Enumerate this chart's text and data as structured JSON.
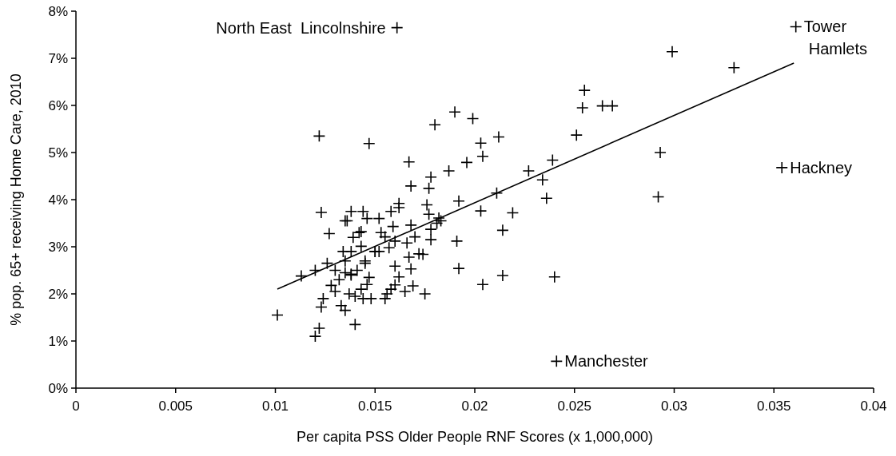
{
  "chart_data": {
    "type": "scatter",
    "xlabel": "Per capita PSS Older People RNF Scores (x 1,000,000)",
    "ylabel": "% pop. 65+ receiving Home Care, 2010",
    "xlim": [
      0,
      0.04
    ],
    "xticks": [
      0,
      0.005,
      0.01,
      0.015,
      0.02,
      0.025,
      0.03,
      0.035,
      0.04
    ],
    "ylim": [
      0,
      8
    ],
    "yticks": [
      {
        "value": 0,
        "label": "0%"
      },
      {
        "value": 1,
        "label": "1%"
      },
      {
        "value": 2,
        "label": "2%"
      },
      {
        "value": 3,
        "label": "3%"
      },
      {
        "value": 4,
        "label": "4%"
      },
      {
        "value": 5,
        "label": "5%"
      },
      {
        "value": 6,
        "label": "6%"
      },
      {
        "value": 7,
        "label": "7%"
      },
      {
        "value": 8,
        "label": "8%"
      }
    ],
    "grid": false,
    "marker": "cross",
    "series": [
      {
        "color": "#000000",
        "x": [
          0.0361,
          0.0299,
          0.033,
          0.0354,
          0.0241,
          0.0161,
          0.0293,
          0.0292,
          0.0255,
          0.0254,
          0.0264,
          0.0269,
          0.0251,
          0.0239,
          0.0227,
          0.0234,
          0.0236,
          0.0211,
          0.0219,
          0.0214,
          0.0203,
          0.024,
          0.0214,
          0.0204,
          0.0192,
          0.0191,
          0.0192,
          0.0212,
          0.0203,
          0.0204,
          0.0199,
          0.019,
          0.018,
          0.0196,
          0.0187,
          0.0178,
          0.0177,
          0.0168,
          0.0167,
          0.0147,
          0.0162,
          0.0162,
          0.0176,
          0.0177,
          0.0182,
          0.0183,
          0.0181,
          0.0168,
          0.0159,
          0.0158,
          0.0152,
          0.0146,
          0.0144,
          0.0138,
          0.0143,
          0.0155,
          0.017,
          0.0178,
          0.0178,
          0.016,
          0.0166,
          0.0157,
          0.015,
          0.0143,
          0.0145,
          0.016,
          0.0168,
          0.0174,
          0.0167,
          0.0162,
          0.0138,
          0.0169,
          0.016,
          0.0101,
          0.0113,
          0.012,
          0.0122,
          0.0123,
          0.012,
          0.0122,
          0.0123,
          0.0126,
          0.0127,
          0.0128,
          0.0124,
          0.013,
          0.013,
          0.0132,
          0.0133,
          0.0134,
          0.0135,
          0.0135,
          0.0135,
          0.0136,
          0.0135,
          0.0137,
          0.0138,
          0.0138,
          0.0139,
          0.014,
          0.014,
          0.0141,
          0.0142,
          0.0143,
          0.0144,
          0.0145,
          0.0146,
          0.0147,
          0.0148,
          0.015,
          0.0152,
          0.0155,
          0.0156,
          0.0158,
          0.0165,
          0.0175,
          0.0172,
          0.0153
        ],
        "values": [
          7.67,
          7.14,
          6.8,
          4.68,
          0.57,
          7.65,
          5.0,
          4.06,
          6.32,
          5.95,
          5.99,
          5.99,
          5.37,
          4.84,
          4.61,
          4.42,
          4.03,
          4.14,
          3.72,
          3.35,
          3.76,
          2.36,
          2.39,
          2.2,
          2.54,
          3.12,
          3.97,
          5.33,
          5.2,
          4.92,
          5.72,
          5.86,
          5.59,
          4.79,
          4.61,
          4.48,
          4.24,
          4.29,
          4.8,
          5.19,
          3.92,
          3.83,
          3.89,
          3.69,
          3.61,
          3.55,
          3.5,
          3.46,
          3.43,
          3.75,
          3.6,
          3.6,
          3.75,
          3.75,
          3.32,
          3.21,
          3.21,
          3.15,
          3.37,
          3.12,
          3.08,
          2.98,
          2.9,
          3.01,
          2.7,
          2.59,
          2.53,
          2.84,
          2.78,
          2.36,
          2.42,
          2.17,
          2.19,
          1.55,
          2.38,
          1.1,
          1.27,
          1.72,
          2.5,
          5.35,
          3.73,
          2.65,
          3.28,
          2.18,
          1.9,
          2.5,
          2.05,
          2.3,
          1.75,
          2.9,
          2.45,
          2.7,
          3.55,
          3.55,
          1.65,
          2.0,
          2.4,
          2.9,
          3.2,
          1.35,
          1.95,
          2.5,
          3.3,
          2.1,
          1.9,
          2.65,
          2.2,
          2.35,
          1.9,
          2.9,
          2.9,
          1.9,
          2.0,
          2.1,
          2.05,
          2.0,
          2.85,
          3.3
        ]
      },
      {
        "type": "line",
        "marker": "none",
        "color": "#000000",
        "x": [
          0.0101,
          0.036
        ],
        "values": [
          2.1,
          6.9
        ]
      }
    ],
    "annotations": [
      {
        "text": "Tower Hamlets",
        "x": 0.0361,
        "y": 7.67
      },
      {
        "text": "North East  Lincolnshire",
        "x": 0.0161,
        "y": 7.65
      },
      {
        "text": "Hackney",
        "x": 0.0354,
        "y": 4.68
      },
      {
        "text": "Manchester",
        "x": 0.0241,
        "y": 0.57
      }
    ]
  }
}
